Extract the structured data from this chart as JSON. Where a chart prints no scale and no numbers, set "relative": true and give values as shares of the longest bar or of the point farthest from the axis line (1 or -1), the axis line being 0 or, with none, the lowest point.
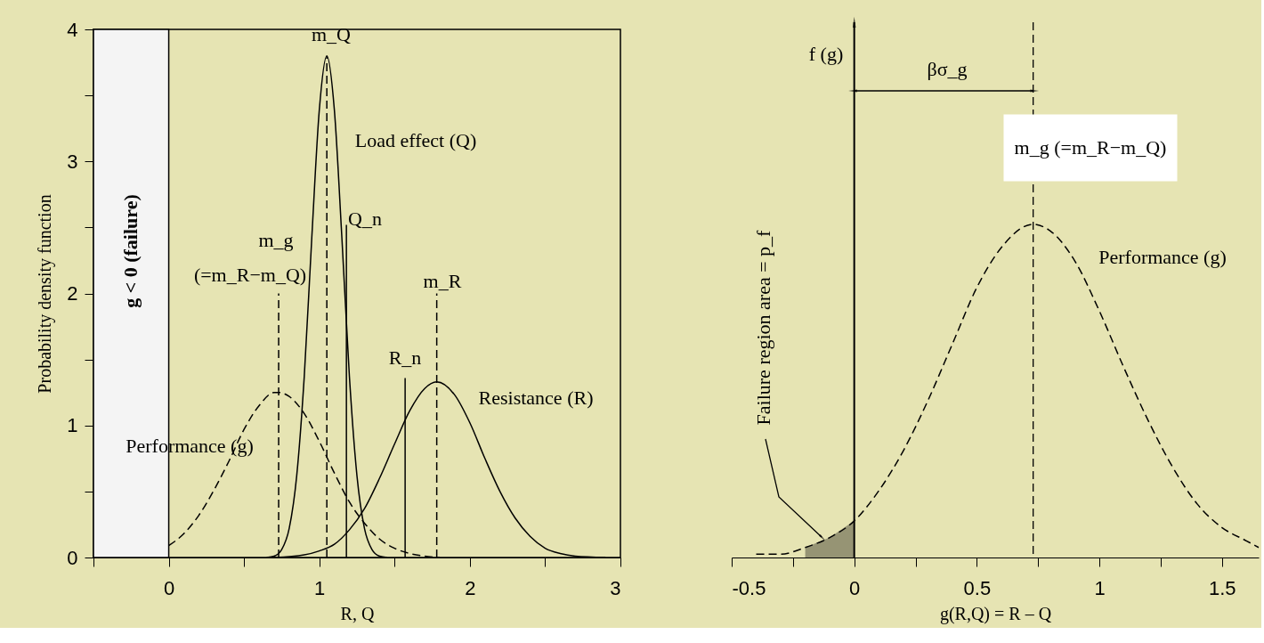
{
  "chart_data": [
    {
      "type": "line",
      "xlabel": "R, Q",
      "ylabel": "Probability density function",
      "xlim": [
        -0.5,
        3
      ],
      "ylim": [
        0,
        4
      ],
      "xticks": [
        {
          "value": -0.5,
          "label": null
        },
        0,
        {
          "value": 0.5,
          "label": null
        },
        1,
        {
          "value": 1.5,
          "label": null
        },
        2,
        {
          "value": 2.5,
          "label": null
        },
        3
      ],
      "yticks": [
        0,
        {
          "value": 0.5,
          "label": null
        },
        1,
        {
          "value": 1.5,
          "label": null
        },
        2,
        {
          "value": 2.5,
          "label": null
        },
        3,
        {
          "value": 3.5,
          "label": null
        },
        4
      ],
      "grid": false,
      "series": [
        {
          "color": "#000000",
          "line_style": "dashed",
          "x": [
            0,
            0.1,
            0.2,
            0.3,
            0.4,
            0.5,
            0.6,
            0.7,
            0.73,
            0.8,
            0.9,
            1.0,
            1.1,
            1.2,
            1.3,
            1.4,
            1.5,
            1.6,
            1.7,
            1.8
          ],
          "values": [
            0.09,
            0.18,
            0.32,
            0.51,
            0.73,
            0.97,
            1.15,
            1.25,
            1.25,
            1.22,
            1.09,
            0.88,
            0.64,
            0.42,
            0.26,
            0.14,
            0.07,
            0.03,
            0.01,
            0.0
          ]
        },
        {
          "color": "#000000",
          "line_style": "solid",
          "x": [
            0.65,
            0.7,
            0.75,
            0.8,
            0.85,
            0.9,
            0.95,
            1.0,
            1.05,
            1.1,
            1.15,
            1.2,
            1.25,
            1.3,
            1.35,
            1.4,
            1.45
          ],
          "values": [
            0.0,
            0.01,
            0.06,
            0.22,
            0.62,
            1.37,
            2.42,
            3.39,
            3.8,
            3.39,
            2.42,
            1.37,
            0.62,
            0.22,
            0.06,
            0.01,
            0.0
          ]
        },
        {
          "color": "#000000",
          "line_style": "solid",
          "x": [
            0.7,
            0.9,
            1.0,
            1.1,
            1.2,
            1.3,
            1.4,
            1.5,
            1.6,
            1.7,
            1.78,
            1.9,
            2.0,
            2.1,
            2.2,
            2.3,
            2.4,
            2.5,
            2.6,
            2.7,
            2.9
          ],
          "values": [
            0.0,
            0.02,
            0.05,
            0.1,
            0.21,
            0.37,
            0.6,
            0.86,
            1.11,
            1.28,
            1.33,
            1.23,
            1.02,
            0.75,
            0.5,
            0.3,
            0.16,
            0.07,
            0.03,
            0.01,
            0.0
          ]
        },
        {
          "color": "#000000",
          "line_style": "dashed",
          "x": [
            0.73,
            0.73
          ],
          "values": [
            0,
            2.0
          ]
        },
        {
          "color": "#000000",
          "line_style": "dashed",
          "x": [
            1.05,
            1.05
          ],
          "values": [
            0,
            3.8
          ]
        },
        {
          "color": "#000000",
          "line_style": "solid",
          "x": [
            1.18,
            1.18
          ],
          "values": [
            0,
            2.52
          ]
        },
        {
          "color": "#000000",
          "line_style": "solid",
          "x": [
            1.57,
            1.57
          ],
          "values": [
            0,
            1.36
          ]
        },
        {
          "color": "#000000",
          "line_style": "dashed",
          "x": [
            1.78,
            1.78
          ],
          "values": [
            0,
            2.0
          ]
        }
      ],
      "bands": [
        {
          "axis": "x",
          "from": -0.5,
          "to": 0,
          "label": "g < 0 (failure)",
          "color": "#f4f4f4"
        }
      ],
      "annotations": [
        "m_Q",
        "Load effect (Q)",
        "Q_n",
        "m_g",
        "(=m_R−m_Q)",
        "m_R",
        "R_n",
        "Resistance (R)",
        "Performance (g)"
      ]
    },
    {
      "type": "line",
      "relative": true,
      "xlabel": "g(R,Q) = R – Q",
      "xlim": [
        -0.5,
        1.65
      ],
      "xticks": [
        -0.5,
        {
          "value": -0.25,
          "label": null
        },
        0,
        {
          "value": 0.25,
          "label": null
        },
        0.5,
        {
          "value": 0.75,
          "label": null
        },
        1,
        {
          "value": 1.25,
          "label": null
        },
        1.5
      ],
      "tick_labels": "x",
      "grid": false,
      "series": [
        {
          "color": "#000000",
          "line_style": "dashed",
          "x": [
            -0.4,
            -0.3,
            -0.2,
            -0.1,
            0,
            0.1,
            0.2,
            0.3,
            0.4,
            0.5,
            0.6,
            0.73,
            0.8,
            0.9,
            1.0,
            1.1,
            1.2,
            1.3,
            1.4,
            1.5,
            1.6,
            1.65
          ],
          "values": [
            0.01,
            0.01,
            0.03,
            0.06,
            0.11,
            0.2,
            0.32,
            0.47,
            0.64,
            0.81,
            0.93,
            1,
            0.98,
            0.89,
            0.74,
            0.57,
            0.41,
            0.27,
            0.16,
            0.09,
            0.05,
            0.03
          ]
        },
        {
          "type": "area",
          "color": "#000000",
          "x": [
            -0.2,
            -0.1,
            0
          ],
          "values": [
            0.03,
            0.06,
            0.11
          ]
        }
      ],
      "ref_lines": [
        {
          "axis": "x",
          "value": 0
        },
        {
          "axis": "x",
          "value": 0.73,
          "line_style": "dashed"
        }
      ],
      "annotations": [
        "f (g)",
        "βσ_g",
        "m_g (=m_R−m_Q)",
        "Performance (g)",
        "Failure region area = p_f"
      ]
    }
  ]
}
